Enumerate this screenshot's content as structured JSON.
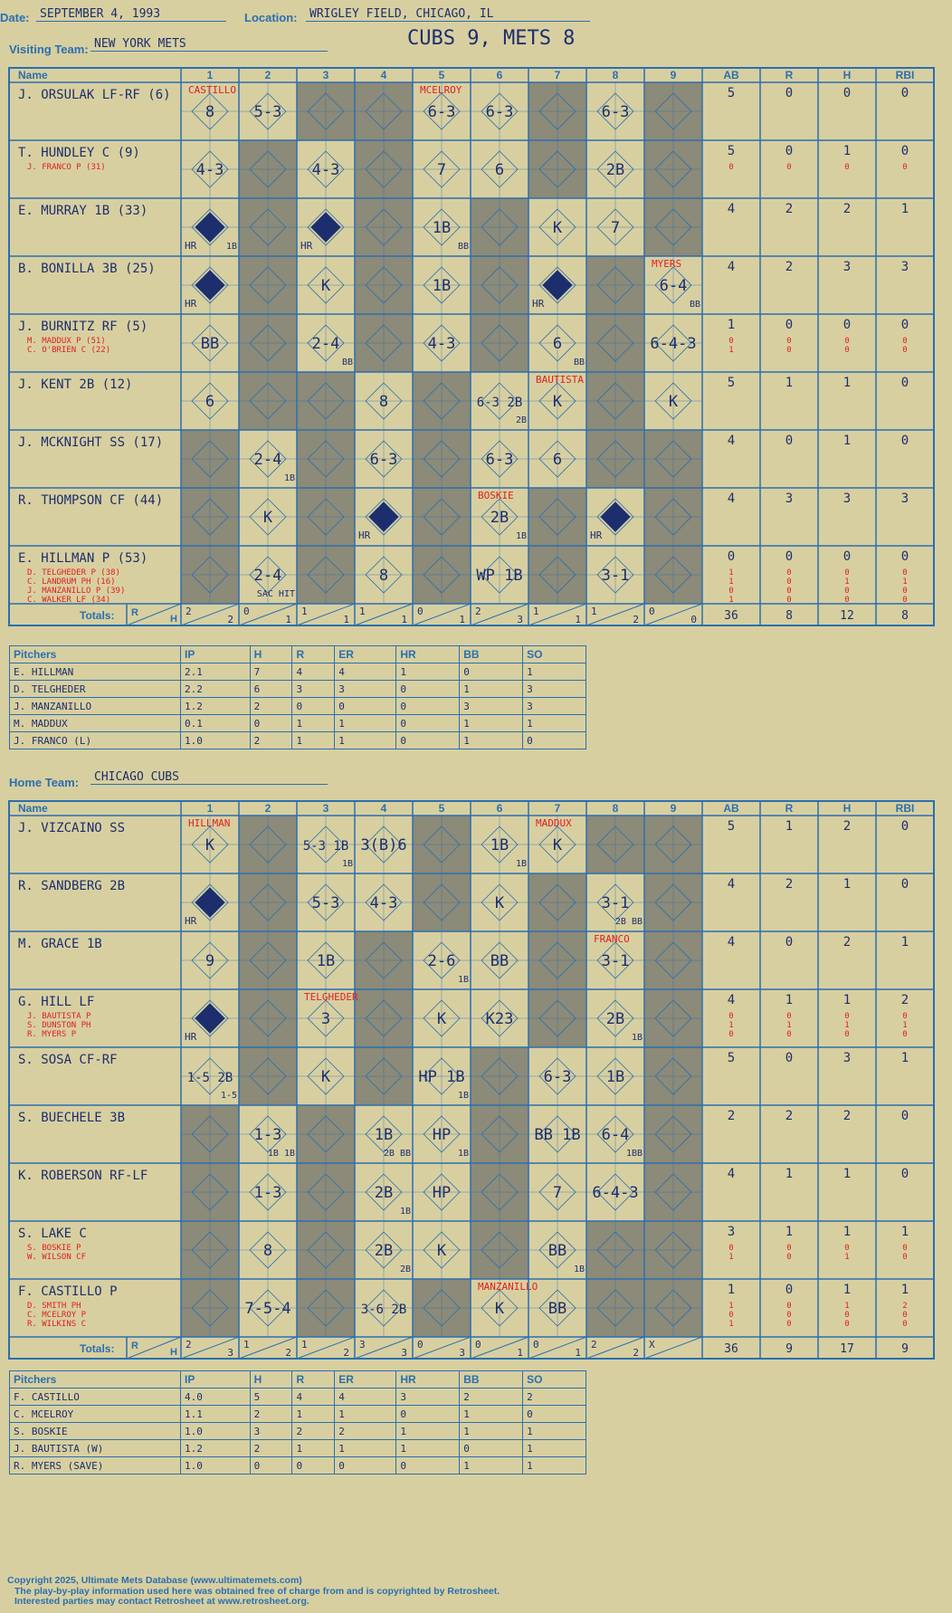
{
  "header": {
    "date_label": "Date:",
    "date": "SEPTEMBER 4, 1993",
    "location_label": "Location:",
    "location": "WRIGLEY FIELD, CHICAGO, IL",
    "score_title": "CUBS 9, METS 8"
  },
  "labels": {
    "visiting_team": "Visiting Team:",
    "home_team": "Home Team:",
    "name": "Name",
    "totals": "Totals:",
    "pitchers": "Pitchers",
    "r": "R",
    "h": "H",
    "stat_cols": [
      "AB",
      "R",
      "H",
      "RBI"
    ],
    "innings": [
      "1",
      "2",
      "3",
      "4",
      "5",
      "6",
      "7",
      "8",
      "9"
    ],
    "pitch_cols": [
      "IP",
      "H",
      "R",
      "ER",
      "HR",
      "BB",
      "SO"
    ]
  },
  "visitor": {
    "team": "NEW YORK METS",
    "batters": [
      {
        "name": "J. ORSULAK LF-RF (6)",
        "subs": [],
        "stats": [
          [
            "5"
          ],
          [
            "0"
          ],
          [
            "0"
          ],
          [
            "0"
          ]
        ]
      },
      {
        "name": "T. HUNDLEY C (9)",
        "subs": [
          "J. FRANCO P (31)"
        ],
        "stats": [
          [
            "5",
            "0"
          ],
          [
            "0",
            "0"
          ],
          [
            "1",
            "0"
          ],
          [
            "0",
            "0"
          ]
        ]
      },
      {
        "name": "E. MURRAY 1B (33)",
        "subs": [],
        "stats": [
          [
            "4"
          ],
          [
            "2"
          ],
          [
            "2"
          ],
          [
            "1"
          ]
        ]
      },
      {
        "name": "B. BONILLA 3B (25)",
        "subs": [],
        "stats": [
          [
            "4"
          ],
          [
            "2"
          ],
          [
            "3"
          ],
          [
            "3"
          ]
        ]
      },
      {
        "name": "J. BURNITZ RF (5)",
        "subs": [
          "M. MADDUX P (51)",
          "C. O'BRIEN C (22)"
        ],
        "stats": [
          [
            "1",
            "0",
            "1"
          ],
          [
            "0",
            "0",
            "0"
          ],
          [
            "0",
            "0",
            "0"
          ],
          [
            "0",
            "0",
            "0"
          ]
        ]
      },
      {
        "name": "J. KENT 2B (12)",
        "subs": [],
        "stats": [
          [
            "5"
          ],
          [
            "1"
          ],
          [
            "1"
          ],
          [
            "0"
          ]
        ]
      },
      {
        "name": "J. MCKNIGHT SS (17)",
        "subs": [],
        "stats": [
          [
            "4"
          ],
          [
            "0"
          ],
          [
            "1"
          ],
          [
            "0"
          ]
        ]
      },
      {
        "name": "R. THOMPSON CF (44)",
        "subs": [],
        "stats": [
          [
            "4"
          ],
          [
            "3"
          ],
          [
            "3"
          ],
          [
            "3"
          ]
        ]
      },
      {
        "name": "E. HILLMAN P (53)",
        "subs": [
          "D. TELGHEDER P (38)",
          "C. LANDRUM PH (16)",
          "J. MANZANILLO P (39)",
          "C. WALKER LF (34)"
        ],
        "stats": [
          [
            "0",
            "1",
            "1",
            "0",
            "1"
          ],
          [
            "0",
            "0",
            "0",
            "0",
            "0"
          ],
          [
            "0",
            "0",
            "1",
            "0",
            "0"
          ],
          [
            "0",
            "0",
            "1",
            "0",
            "0"
          ]
        ]
      }
    ],
    "cells": [
      [
        [
          "8"
        ],
        [
          "5-3"
        ],
        null,
        null,
        [
          "6-3"
        ],
        [
          "6-3"
        ],
        null,
        [
          "6-3"
        ],
        null
      ],
      [
        [
          "4-3"
        ],
        null,
        [
          "4-3"
        ],
        null,
        [
          "7"
        ],
        [
          "6"
        ],
        null,
        [
          "2B"
        ],
        null
      ],
      [
        [
          "HR",
          "1B"
        ],
        null,
        [
          "HR"
        ],
        null,
        [
          "1B",
          "BB"
        ],
        null,
        [
          "K"
        ],
        [
          "7"
        ],
        null
      ],
      [
        [
          "HR"
        ],
        null,
        [
          "K"
        ],
        null,
        [
          "1B"
        ],
        null,
        [
          "HR"
        ],
        null,
        [
          "6-4",
          "BB"
        ]
      ],
      [
        [
          "BB"
        ],
        null,
        [
          "2-4",
          "BB"
        ],
        null,
        [
          "4-3"
        ],
        null,
        [
          "6",
          "BB"
        ],
        null,
        [
          "6-4-3"
        ]
      ],
      [
        [
          "6"
        ],
        null,
        null,
        [
          "8"
        ],
        null,
        [
          "6-3 2B",
          "2B"
        ],
        [
          "K"
        ],
        null,
        [
          "K"
        ]
      ],
      [
        null,
        [
          "2-4",
          "1B"
        ],
        null,
        [
          "6-3"
        ],
        null,
        [
          "6-3"
        ],
        [
          "6"
        ],
        null,
        null
      ],
      [
        null,
        [
          "K"
        ],
        null,
        [
          "HR"
        ],
        null,
        [
          "2B",
          "1B"
        ],
        null,
        [
          "HR"
        ],
        null
      ],
      [
        null,
        [
          "2-4",
          "SAC HIT"
        ],
        null,
        [
          "8"
        ],
        null,
        [
          "WP 1B"
        ],
        null,
        [
          "3-1"
        ],
        null
      ]
    ],
    "notes": [
      "CASTILLO",
      "MCELROY",
      "MYERS",
      "BAUTISTA",
      "BOSKIE"
    ],
    "totals_rh": [
      [
        "2",
        "2"
      ],
      [
        "0",
        "1"
      ],
      [
        "1",
        "1"
      ],
      [
        "1",
        "1"
      ],
      [
        "0",
        "1"
      ],
      [
        "2",
        "3"
      ],
      [
        "1",
        "1"
      ],
      [
        "1",
        "2"
      ],
      [
        "0",
        "0"
      ]
    ],
    "totals_stats": [
      "36",
      "8",
      "12",
      "8"
    ],
    "pitchers": [
      [
        "E. HILLMAN",
        "2.1",
        "7",
        "4",
        "4",
        "1",
        "0",
        "1"
      ],
      [
        "D. TELGHEDER",
        "2.2",
        "6",
        "3",
        "3",
        "0",
        "1",
        "3"
      ],
      [
        "J. MANZANILLO",
        "1.2",
        "2",
        "0",
        "0",
        "0",
        "3",
        "3"
      ],
      [
        "M. MADDUX",
        "0.1",
        "0",
        "1",
        "1",
        "0",
        "1",
        "1"
      ],
      [
        "J. FRANCO (L)",
        "1.0",
        "2",
        "1",
        "1",
        "0",
        "1",
        "0"
      ]
    ]
  },
  "home": {
    "team": "CHICAGO CUBS",
    "batters": [
      {
        "name": "J. VIZCAINO SS",
        "subs": [],
        "stats": [
          [
            "5"
          ],
          [
            "1"
          ],
          [
            "2"
          ],
          [
            "0"
          ]
        ]
      },
      {
        "name": "R. SANDBERG 2B",
        "subs": [],
        "stats": [
          [
            "4"
          ],
          [
            "2"
          ],
          [
            "1"
          ],
          [
            "0"
          ]
        ]
      },
      {
        "name": "M. GRACE 1B",
        "subs": [],
        "stats": [
          [
            "4"
          ],
          [
            "0"
          ],
          [
            "2"
          ],
          [
            "1"
          ]
        ]
      },
      {
        "name": "G. HILL LF",
        "subs": [
          "J. BAUTISTA P",
          "S. DUNSTON PH",
          "R. MYERS P"
        ],
        "stats": [
          [
            "4",
            "0",
            "1",
            "0"
          ],
          [
            "1",
            "0",
            "1",
            "0"
          ],
          [
            "1",
            "0",
            "1",
            "0"
          ],
          [
            "2",
            "0",
            "1",
            "0"
          ]
        ]
      },
      {
        "name": "S. SOSA CF-RF",
        "subs": [],
        "stats": [
          [
            "5"
          ],
          [
            "0"
          ],
          [
            "3"
          ],
          [
            "1"
          ]
        ]
      },
      {
        "name": "S. BUECHELE 3B",
        "subs": [],
        "stats": [
          [
            "2"
          ],
          [
            "2"
          ],
          [
            "2"
          ],
          [
            "0"
          ]
        ]
      },
      {
        "name": "K. ROBERSON RF-LF",
        "subs": [],
        "stats": [
          [
            "4"
          ],
          [
            "1"
          ],
          [
            "1"
          ],
          [
            "0"
          ]
        ]
      },
      {
        "name": "S. LAKE C",
        "subs": [
          "S. BOSKIE P",
          "W. WILSON CF"
        ],
        "stats": [
          [
            "3",
            "0",
            "1"
          ],
          [
            "1",
            "0",
            "0"
          ],
          [
            "1",
            "0",
            "1"
          ],
          [
            "1",
            "0",
            "0"
          ]
        ]
      },
      {
        "name": "F. CASTILLO P",
        "subs": [
          "D. SMITH PH",
          "C. MCELROY P",
          "R. WILKINS C"
        ],
        "stats": [
          [
            "1",
            "1",
            "0",
            "1"
          ],
          [
            "0",
            "0",
            "0",
            "0"
          ],
          [
            "1",
            "1",
            "0",
            "0"
          ],
          [
            "1",
            "2",
            "0",
            "0"
          ]
        ]
      }
    ],
    "cells": [
      [
        [
          "K"
        ],
        null,
        [
          "5-3 1B",
          "1B"
        ],
        [
          "3(B)6"
        ],
        null,
        [
          "1B",
          "1B"
        ],
        [
          "K"
        ],
        null,
        null
      ],
      [
        [
          "HR"
        ],
        null,
        [
          "5-3"
        ],
        [
          "4-3"
        ],
        null,
        [
          "K"
        ],
        null,
        [
          "3-1",
          "2B BB"
        ],
        null
      ],
      [
        [
          "9"
        ],
        null,
        [
          "1B"
        ],
        null,
        [
          "2-6",
          "1B"
        ],
        [
          "BB"
        ],
        null,
        [
          "3-1"
        ],
        null
      ],
      [
        [
          "HR"
        ],
        null,
        [
          "3"
        ],
        null,
        [
          "K"
        ],
        [
          "K23"
        ],
        null,
        [
          "2B",
          "1B"
        ],
        null
      ],
      [
        [
          "1-5 2B",
          "1-5"
        ],
        null,
        [
          "K"
        ],
        null,
        [
          "HP 1B",
          "1B"
        ],
        null,
        [
          "6-3"
        ],
        [
          "1B"
        ],
        null
      ],
      [
        null,
        [
          "1-3",
          "1B 1B"
        ],
        null,
        [
          "1B",
          "2B BB"
        ],
        [
          "HP",
          "1B"
        ],
        null,
        [
          "BB 1B"
        ],
        [
          "6-4",
          "1BB"
        ],
        null
      ],
      [
        null,
        [
          "1-3"
        ],
        null,
        [
          "2B",
          "1B"
        ],
        [
          "HP"
        ],
        null,
        [
          "7"
        ],
        [
          "6-4-3"
        ],
        null
      ],
      [
        null,
        [
          "8"
        ],
        null,
        [
          "2B",
          "2B"
        ],
        [
          "K"
        ],
        null,
        [
          "BB",
          "1B"
        ],
        null,
        null
      ],
      [
        null,
        [
          "7-5-4"
        ],
        null,
        [
          "3-6 2B"
        ],
        null,
        [
          "K"
        ],
        [
          "BB"
        ],
        null,
        null
      ]
    ],
    "notes": [
      "HILLMAN",
      "MADDUX",
      "FRANCO",
      "TELGHEDER",
      "MANZANILLO"
    ],
    "totals_rh": [
      [
        "2",
        "3"
      ],
      [
        "1",
        "2"
      ],
      [
        "1",
        "2"
      ],
      [
        "3",
        "3"
      ],
      [
        "0",
        "3"
      ],
      [
        "0",
        "1"
      ],
      [
        "0",
        "1"
      ],
      [
        "2",
        "2"
      ],
      [
        "X",
        ""
      ]
    ],
    "totals_stats": [
      "36",
      "9",
      "17",
      "9"
    ],
    "pitchers": [
      [
        "F. CASTILLO",
        "4.0",
        "5",
        "4",
        "4",
        "3",
        "2",
        "2"
      ],
      [
        "C. MCELROY",
        "1.1",
        "2",
        "1",
        "1",
        "0",
        "1",
        "0"
      ],
      [
        "S. BOSKIE",
        "1.0",
        "3",
        "2",
        "2",
        "1",
        "1",
        "1"
      ],
      [
        "J. BAUTISTA (W)",
        "1.2",
        "2",
        "1",
        "1",
        "1",
        "0",
        "1"
      ],
      [
        "R. MYERS (SAVE)",
        "1.0",
        "0",
        "0",
        "0",
        "0",
        "1",
        "1"
      ]
    ]
  },
  "footer": {
    "copyright": "Copyright 2025, Ultimate Mets Database (www.ultimatemets.com)",
    "line2": "The play-by-play information used here was obtained free of charge from and is copyrighted by Retrosheet.",
    "line3": "Interested parties may contact Retrosheet at www.retrosheet.org."
  },
  "colors": {
    "background": "#d8cfa0",
    "grid": "#2a6fb0",
    "shaded": "#8c8a78",
    "ink": "#1c2e6e",
    "red": "#e02020",
    "green": "#1a7a2a"
  }
}
